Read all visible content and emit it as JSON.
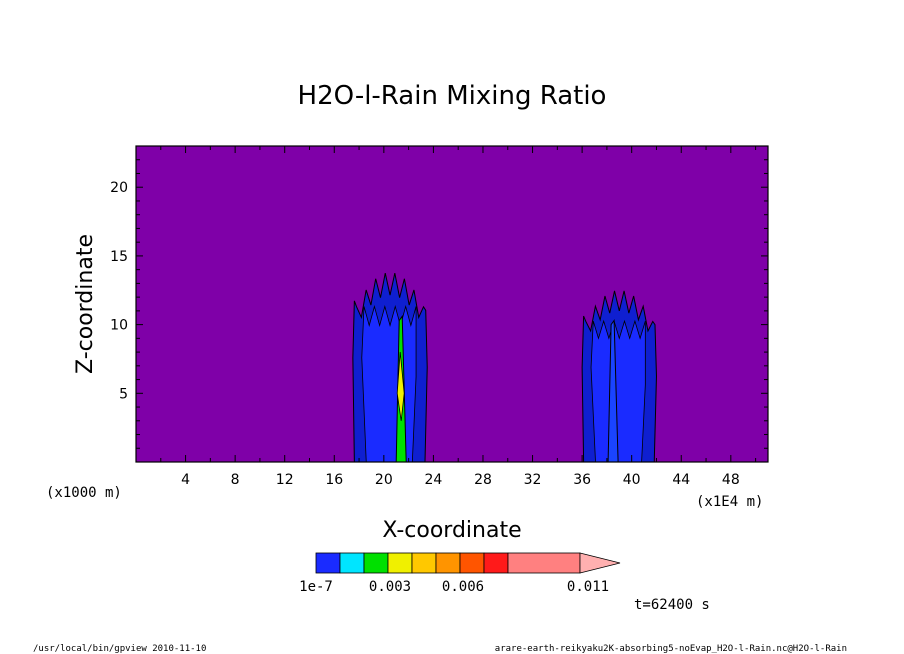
{
  "chart_data": {
    "type": "heatmap",
    "title": "H2O-l-Rain Mixing Ratio",
    "xlabel": "X-coordinate",
    "ylabel": "Z-coordinate",
    "x_unit_label": "(x1E4 m)",
    "z_unit_label": "(x1000 m)",
    "xlim": [
      0,
      51
    ],
    "ylim": [
      0,
      23
    ],
    "x_ticks": [
      4,
      8,
      12,
      16,
      20,
      24,
      28,
      32,
      36,
      40,
      44,
      48
    ],
    "y_ticks": [
      5,
      10,
      15,
      20
    ],
    "background_color": "#7f00a8",
    "colorbar": {
      "labels": [
        "1e-7",
        "0.003",
        "0.006",
        "0.011"
      ],
      "colors": [
        "#1a2bff",
        "#00e5ff",
        "#00e000",
        "#f0f000",
        "#ffc800",
        "#ff9400",
        "#ff5500",
        "#ff1a1a",
        "#ff8080"
      ]
    },
    "clouds": [
      {
        "name": "cloud-left",
        "x_range": [
          17.5,
          23.5
        ],
        "top": 13.8,
        "outer_color": "#1a2bff",
        "core_color": "#00e000",
        "core_x": 21.4,
        "core_top": 10.3
      },
      {
        "name": "cloud-right",
        "x_range": [
          36,
          42
        ],
        "top": 12.5,
        "outer_color": "#1a2bff",
        "core_color": "#1a44ff",
        "core_x": 38.5,
        "core_top": 10.0
      }
    ]
  },
  "time_label": "t=62400 s",
  "footer": {
    "left": "/usr/local/bin/gpview  2010-11-10",
    "right": "arare-earth-reikyaku2K-absorbing5-noEvap_H2O-l-Rain.nc@H2O-l-Rain"
  }
}
